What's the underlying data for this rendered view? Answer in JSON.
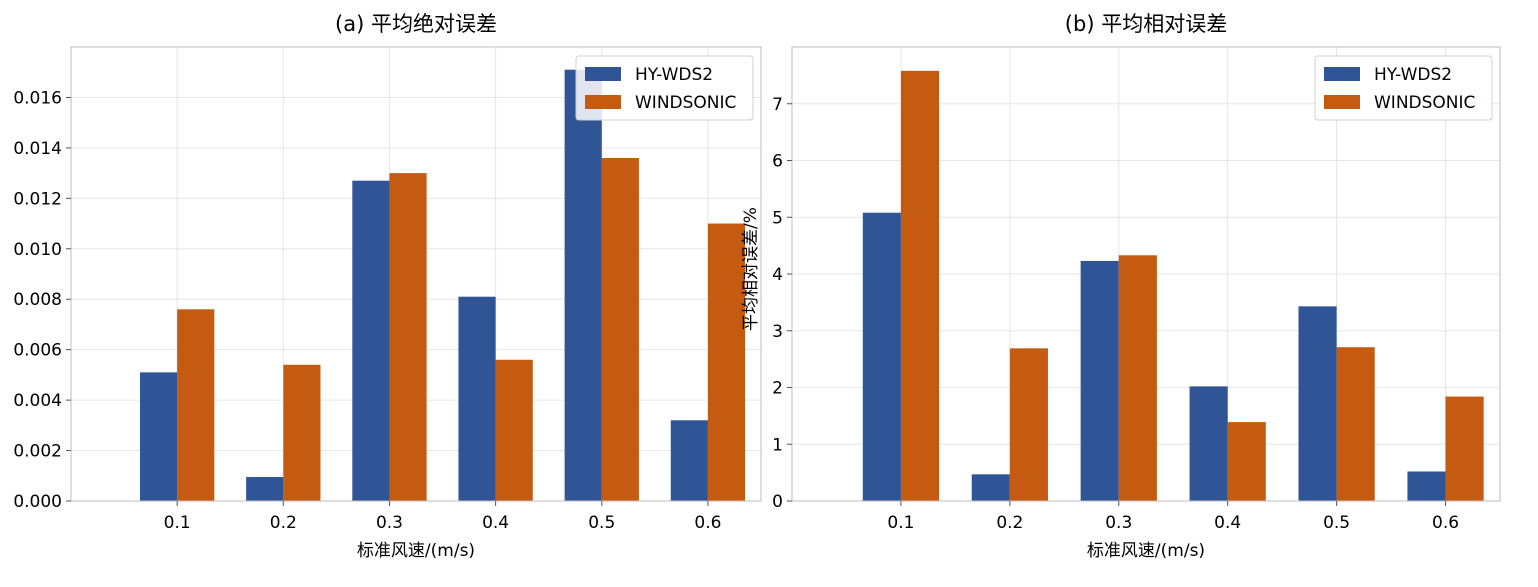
{
  "chart_data": [
    {
      "type": "bar",
      "title": "(a) 平均绝对误差",
      "xlabel": "标准风速/(m/s)",
      "ylabel": "",
      "categories": [
        "0.1",
        "0.2",
        "0.3",
        "0.4",
        "0.5",
        "0.6"
      ],
      "ylim": [
        0,
        0.018
      ],
      "yticks": [
        "0.000",
        "0.002",
        "0.004",
        "0.006",
        "0.008",
        "0.010",
        "0.012",
        "0.014",
        "0.016"
      ],
      "ytick_values": [
        0,
        0.002,
        0.004,
        0.006,
        0.008,
        0.01,
        0.012,
        0.014,
        0.016
      ],
      "grid": true,
      "legend": "top-right",
      "series": [
        {
          "name": "HY-WDS2",
          "color": "#2f5597",
          "values": [
            0.0051,
            0.00095,
            0.0127,
            0.0081,
            0.0171,
            0.0032
          ]
        },
        {
          "name": "WINDSONIC",
          "color": "#c55a11",
          "values": [
            0.0076,
            0.0054,
            0.013,
            0.0056,
            0.0136,
            0.011
          ]
        }
      ]
    },
    {
      "type": "bar",
      "title": "(b) 平均相对误差",
      "xlabel": "标准风速/(m/s)",
      "ylabel": "平均相对误差/%",
      "categories": [
        "0.1",
        "0.2",
        "0.3",
        "0.4",
        "0.5",
        "0.6"
      ],
      "ylim": [
        0,
        8
      ],
      "yticks": [
        "0",
        "1",
        "2",
        "3",
        "4",
        "5",
        "6",
        "7"
      ],
      "ytick_values": [
        0,
        1,
        2,
        3,
        4,
        5,
        6,
        7
      ],
      "grid": true,
      "legend": "top-right",
      "series": [
        {
          "name": "HY-WDS2",
          "color": "#2f5597",
          "values": [
            5.08,
            0.47,
            4.23,
            2.02,
            3.43,
            0.52
          ]
        },
        {
          "name": "WINDSONIC",
          "color": "#c55a11",
          "values": [
            7.58,
            2.69,
            4.33,
            1.39,
            2.71,
            1.84
          ]
        }
      ]
    }
  ]
}
